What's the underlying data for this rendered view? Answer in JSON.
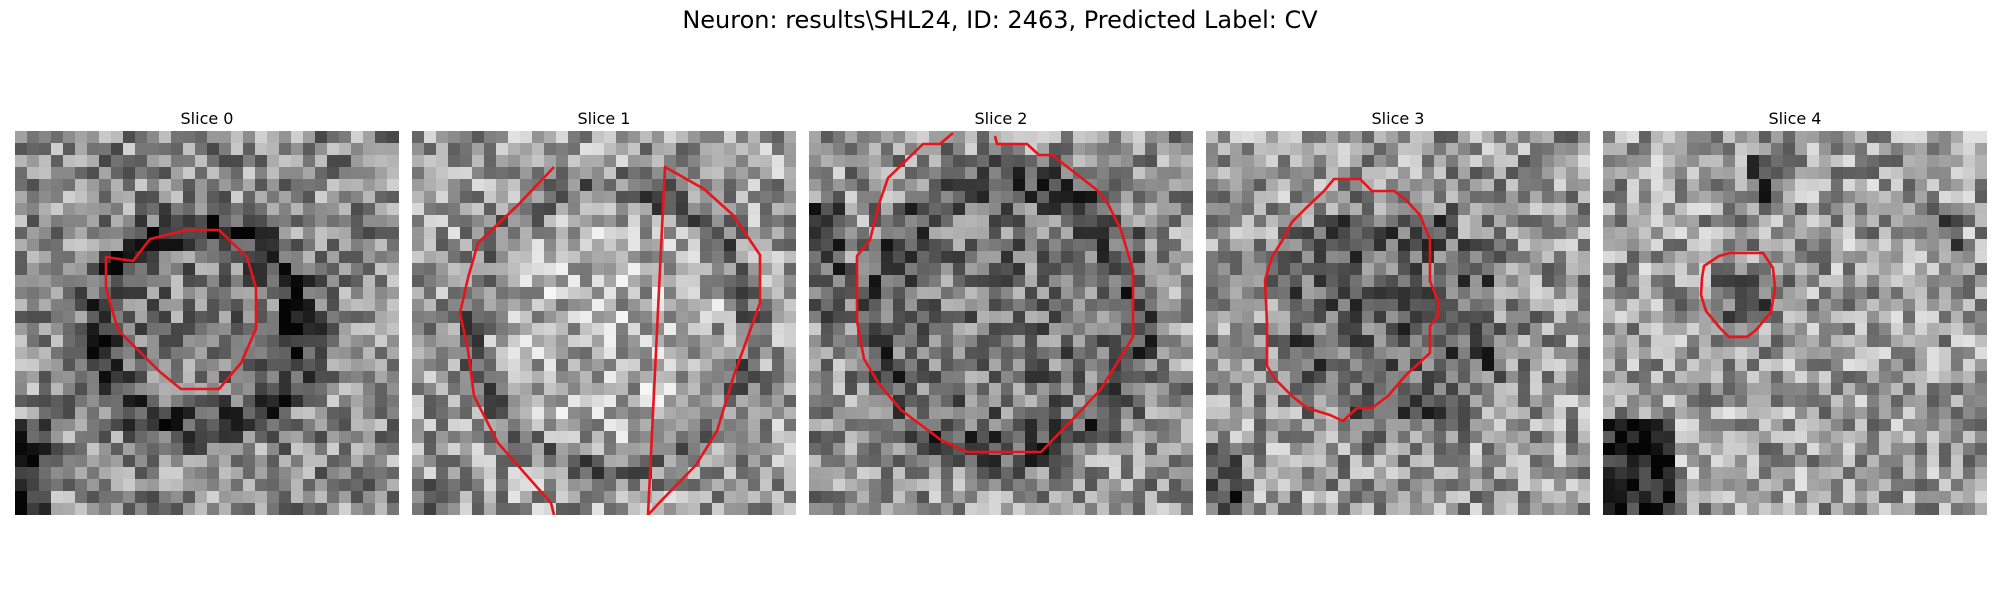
{
  "figure": {
    "title": "Neuron: results\\SHL24, ID: 2463, Predicted Label: CV"
  },
  "panels": [
    {
      "title": "Slice 0",
      "seed": 11,
      "contour_color": "#e8141b"
    },
    {
      "title": "Slice 1",
      "seed": 23,
      "contour_color": "#e8141b"
    },
    {
      "title": "Slice 2",
      "seed": 37,
      "contour_color": "#e8141b"
    },
    {
      "title": "Slice 3",
      "seed": 41,
      "contour_color": "#e8141b"
    },
    {
      "title": "Slice 4",
      "seed": 53,
      "contour_color": "#e8141b"
    }
  ]
}
